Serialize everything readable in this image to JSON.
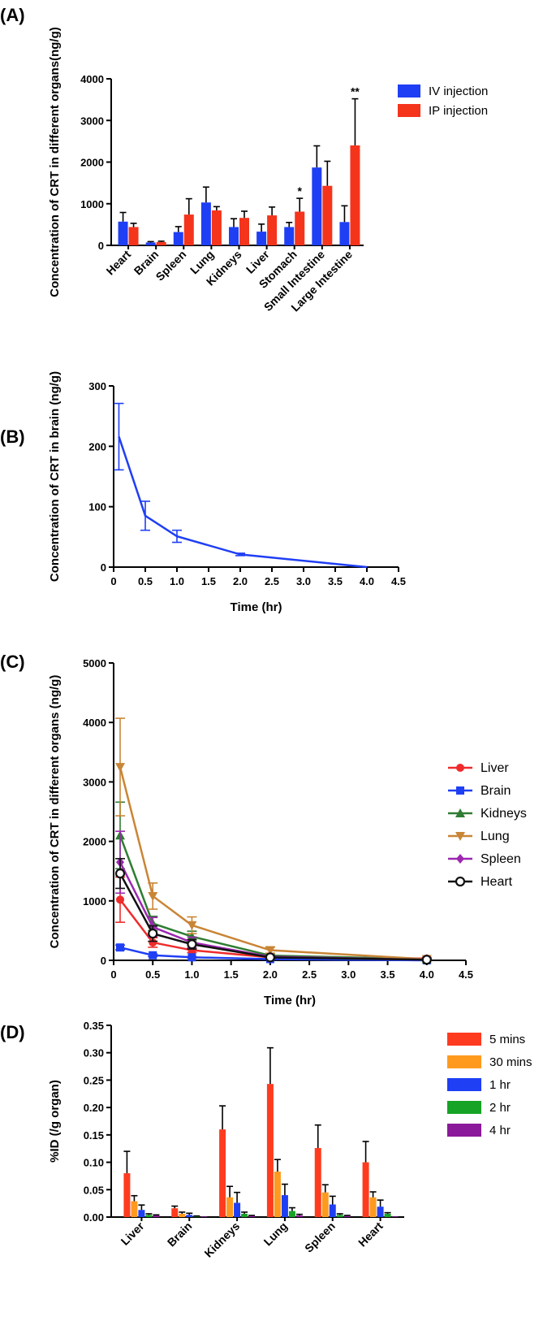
{
  "panels": {
    "a": "(A)",
    "b": "(B)",
    "c": "(C)",
    "d": "(D)"
  },
  "chart_data": [
    {
      "id": "A",
      "type": "bar",
      "ylabel": "Concentration of CRT in different organs(ng/g)",
      "xlabel": "",
      "ylim": [
        0,
        4000
      ],
      "yticks": [
        0,
        1000,
        2000,
        3000,
        4000
      ],
      "legend_position": "top-right",
      "categories": [
        "Heart",
        "Brain",
        "Spleen",
        "Lung",
        "Kidneys",
        "Liver",
        "Stomach",
        "Small Intestine",
        "Large Intestine"
      ],
      "series": [
        {
          "name": "IV injection",
          "color": "#1f3ff5",
          "values": [
            570,
            70,
            320,
            1030,
            440,
            330,
            440,
            1870,
            560
          ],
          "errors": [
            220,
            20,
            130,
            370,
            200,
            180,
            110,
            520,
            390
          ]
        },
        {
          "name": "IP injection",
          "color": "#f5341c",
          "values": [
            440,
            80,
            740,
            840,
            660,
            720,
            810,
            1430,
            2400
          ],
          "errors": [
            90,
            20,
            380,
            90,
            160,
            200,
            320,
            590,
            1120
          ]
        }
      ],
      "annotations": [
        {
          "category": "Stomach",
          "series": "IP injection",
          "text": "*"
        },
        {
          "category": "Large Intestine",
          "series": "IP injection",
          "text": "**"
        }
      ]
    },
    {
      "id": "B",
      "type": "line",
      "ylabel": "Concentration of CRT in brain (ng/g)",
      "xlabel": "Time (hr)",
      "xlim": [
        0,
        4.5
      ],
      "ylim": [
        0,
        300
      ],
      "xticks": [
        "0",
        "0.5",
        "1.0",
        "1.5",
        "2.0",
        "2.5",
        "3.0",
        "3.5",
        "4.0",
        "4.5"
      ],
      "yticks": [
        0,
        100,
        200,
        300
      ],
      "series": [
        {
          "name": "Brain",
          "color": "#1f3ff5",
          "x": [
            0.083,
            0.5,
            1.0,
            2.0,
            4.0
          ],
          "values": [
            216,
            85,
            51,
            21,
            0
          ],
          "errors": [
            55,
            24,
            10,
            2,
            0
          ]
        }
      ]
    },
    {
      "id": "C",
      "type": "line",
      "ylabel": "Concentration of CRT in different organs (ng/g)",
      "xlabel": "Time (hr)",
      "xlim": [
        0,
        4.5
      ],
      "ylim": [
        0,
        5000
      ],
      "xticks": [
        "0",
        "0.5",
        "1.0",
        "1.5",
        "2.0",
        "2.5",
        "3.0",
        "3.5",
        "4.0",
        "4.5"
      ],
      "yticks": [
        0,
        1000,
        2000,
        3000,
        4000,
        5000
      ],
      "legend_position": "right",
      "x": [
        0.083,
        0.5,
        1.0,
        2.0,
        4.0
      ],
      "series": [
        {
          "name": "Liver",
          "color": "#ef2b2b",
          "marker": "circle",
          "values": [
            1020,
            300,
            170,
            50,
            30
          ],
          "errors": [
            380,
            80,
            40,
            20,
            20
          ]
        },
        {
          "name": "Brain",
          "color": "#1f3ff5",
          "marker": "square",
          "values": [
            216,
            85,
            51,
            21,
            0
          ],
          "errors": [
            40,
            20,
            10,
            5,
            0
          ]
        },
        {
          "name": "Kidneys",
          "color": "#2e7d32",
          "marker": "triangle-up",
          "values": [
            2100,
            620,
            400,
            80,
            20
          ],
          "errors": [
            560,
            120,
            90,
            30,
            10
          ]
        },
        {
          "name": "Lung",
          "color": "#c98536",
          "marker": "triangle-down",
          "values": [
            3250,
            1080,
            590,
            170,
            20
          ],
          "errors": [
            820,
            220,
            140,
            50,
            10
          ]
        },
        {
          "name": "Spleen",
          "color": "#9c27b0",
          "marker": "diamond",
          "values": [
            1650,
            560,
            300,
            60,
            10
          ],
          "errors": [
            520,
            160,
            90,
            20,
            10
          ]
        },
        {
          "name": "Heart",
          "color": "#111111",
          "marker": "open-circle",
          "values": [
            1460,
            450,
            270,
            50,
            10
          ],
          "errors": [
            250,
            130,
            80,
            20,
            10
          ]
        }
      ]
    },
    {
      "id": "D",
      "type": "bar",
      "ylabel": "%ID (/g organ)",
      "xlabel": "",
      "ylim": [
        0,
        0.35
      ],
      "yticks": [
        "0.00",
        "0.05",
        "0.10",
        "0.15",
        "0.20",
        "0.25",
        "0.30",
        "0.35"
      ],
      "legend_position": "top-right",
      "categories": [
        "Liver",
        "Brain",
        "Kidneys",
        "Lung",
        "Spleen",
        "Heart"
      ],
      "series": [
        {
          "name": "5 mins",
          "color": "#ff3b1f",
          "values": [
            0.08,
            0.016,
            0.16,
            0.243,
            0.126,
            0.1
          ],
          "errors": [
            0.04,
            0.004,
            0.043,
            0.066,
            0.042,
            0.038
          ]
        },
        {
          "name": "30 mins",
          "color": "#ff9a1f",
          "values": [
            0.029,
            0.006,
            0.036,
            0.083,
            0.045,
            0.036
          ],
          "errors": [
            0.01,
            0.003,
            0.02,
            0.022,
            0.014,
            0.01
          ]
        },
        {
          "name": "1 hr",
          "color": "#1f3ff5",
          "values": [
            0.013,
            0.004,
            0.026,
            0.04,
            0.023,
            0.019
          ],
          "errors": [
            0.009,
            0.003,
            0.019,
            0.02,
            0.015,
            0.012
          ]
        },
        {
          "name": "2 hr",
          "color": "#17a325",
          "values": [
            0.004,
            0.001,
            0.006,
            0.011,
            0.004,
            0.006
          ],
          "errors": [
            0.002,
            0.001,
            0.003,
            0.006,
            0.002,
            0.002
          ]
        },
        {
          "name": "4 hr",
          "color": "#8b1a9a",
          "values": [
            0.003,
            0.001,
            0.002,
            0.003,
            0.002,
            0.001
          ],
          "errors": [
            0.001,
            0.0,
            0.001,
            0.002,
            0.001,
            0.0
          ]
        }
      ]
    }
  ]
}
